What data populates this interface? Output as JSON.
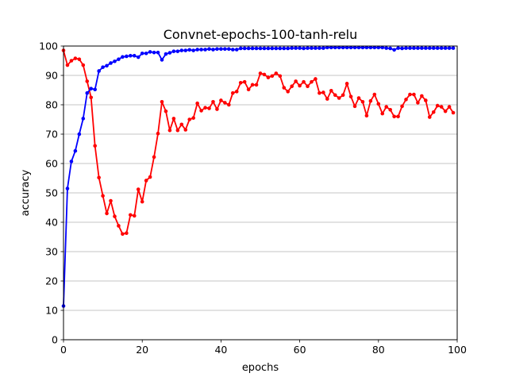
{
  "chart_data": {
    "type": "line",
    "title": "Convnet-epochs-100-tanh-relu",
    "xlabel": "epochs",
    "ylabel": "accuracy",
    "xlim": [
      0,
      100
    ],
    "ylim": [
      0,
      100
    ],
    "xticks": [
      "0",
      "20",
      "40",
      "60",
      "80",
      "100"
    ],
    "yticks": [
      "0",
      "10",
      "20",
      "30",
      "40",
      "50",
      "60",
      "70",
      "80",
      "90",
      "100"
    ],
    "grid": "horizontal",
    "series": [
      {
        "color": "#ff0000",
        "values": [
          98.5,
          93.5,
          95,
          95.8,
          95.5,
          93.5,
          88,
          82.5,
          66,
          55.2,
          49,
          43,
          47.3,
          42,
          38.8,
          36,
          36.3,
          42.5,
          42.2,
          51.2,
          47,
          54.2,
          55.4,
          62.2,
          70.2,
          81,
          77.8,
          71.3,
          75.3,
          71.3,
          73.3,
          71.5,
          75,
          75.5,
          80.5,
          78,
          79,
          78.8,
          81,
          78.5,
          81.5,
          80.7,
          80,
          84,
          84.5,
          87.5,
          87.8,
          85.2,
          86.8,
          86.8,
          90.7,
          90.3,
          89.3,
          89.8,
          90.7,
          89.8,
          85.8,
          84.5,
          86.3,
          88,
          86.5,
          87.8,
          86.3,
          87.8,
          88.8,
          84,
          84.2,
          82,
          84.8,
          83.3,
          82.3,
          83.3,
          87.2,
          82.8,
          79.5,
          82.3,
          81,
          76.3,
          81.3,
          83.5,
          80.3,
          77,
          79.3,
          78.3,
          76,
          76,
          79.5,
          81.8,
          83.5,
          83.5,
          80.7,
          83,
          81.5,
          75.8,
          77.5,
          79.7,
          79.3,
          77.8,
          79.3,
          77.3
        ]
      },
      {
        "color": "#0000ff",
        "values": [
          11.5,
          51.5,
          60.7,
          64.3,
          70,
          75.3,
          84,
          85.5,
          85.2,
          91.5,
          92.8,
          93.3,
          94.2,
          94.8,
          95.5,
          96.3,
          96.5,
          96.7,
          96.7,
          96.2,
          97.5,
          97.5,
          98,
          97.8,
          97.8,
          95.3,
          97.3,
          97.7,
          98.2,
          98.2,
          98.5,
          98.5,
          98.7,
          98.5,
          98.8,
          98.8,
          98.8,
          99,
          98.8,
          99,
          99,
          99,
          99,
          98.8,
          98.8,
          99.2,
          99.2,
          99.2,
          99.2,
          99.2,
          99.2,
          99.2,
          99.2,
          99.2,
          99.2,
          99.2,
          99.2,
          99.2,
          99.3,
          99.3,
          99.3,
          99.2,
          99.3,
          99.3,
          99.3,
          99.3,
          99.3,
          99.5,
          99.5,
          99.5,
          99.5,
          99.5,
          99.5,
          99.5,
          99.5,
          99.5,
          99.5,
          99.5,
          99.5,
          99.5,
          99.5,
          99.5,
          99.3,
          99.2,
          98.7,
          99.3,
          99.2,
          99.3,
          99.3,
          99.3,
          99.3,
          99.3,
          99.3,
          99.3,
          99.3,
          99.3,
          99.3,
          99.3,
          99.3,
          99.3
        ]
      }
    ]
  }
}
